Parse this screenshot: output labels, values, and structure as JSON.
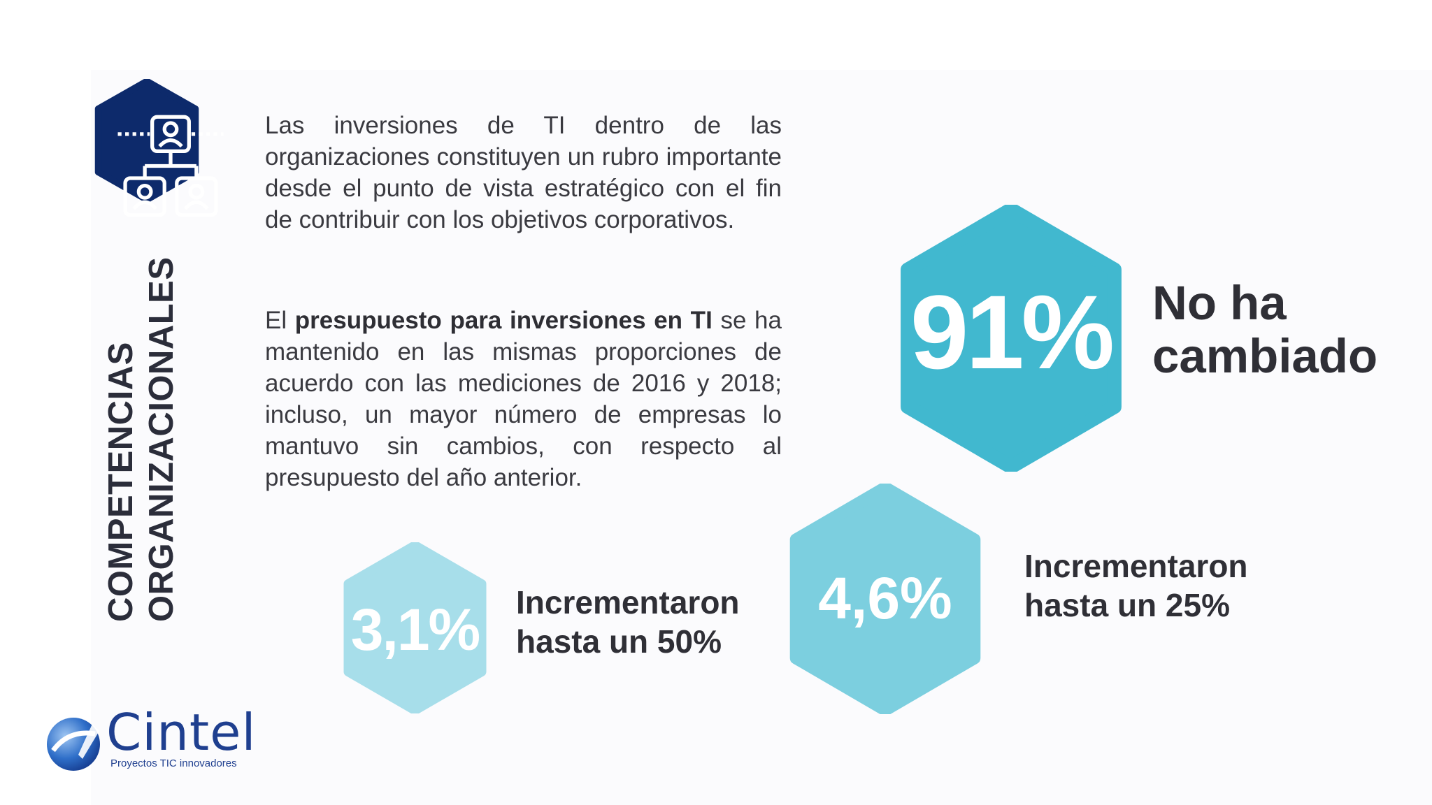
{
  "section_title": {
    "line1": "COMPETENCIAS",
    "line2": "ORGANIZACIONALES"
  },
  "paragraph1": "Las inversiones de TI dentro de las organizaciones constituyen un rubro importante desde el punto de vista estratégico con el fin de contribuir con los objetivos corporativos.",
  "paragraph2": {
    "prefix": "El ",
    "bold": "presupuesto para inversiones en TI",
    "suffix": " se ha mantenido en las mismas proporciones de acuerdo con las mediciones de 2016 y 2018; incluso, un mayor número de empresas lo mantuvo sin cambios, con respecto al presupuesto del año anterior."
  },
  "stats": {
    "no_change": {
      "value": "91%",
      "label_line1": "No ha",
      "label_line2": "cambiado",
      "color": "#41b8cf"
    },
    "up_to_25": {
      "value": "4,6%",
      "label_line1": "Incrementaron",
      "label_line2": "hasta un 25%",
      "color": "#7ccfdf"
    },
    "up_to_50": {
      "value": "3,1%",
      "label_line1": "Incrementaron",
      "label_line2": "hasta un 50%",
      "color": "#a7deea"
    }
  },
  "icon": {
    "name": "organization-chart-icon",
    "color": "#0d2a6b"
  },
  "logo": {
    "name": "Cintel",
    "tagline": "Proyectos TIC innovadores"
  }
}
